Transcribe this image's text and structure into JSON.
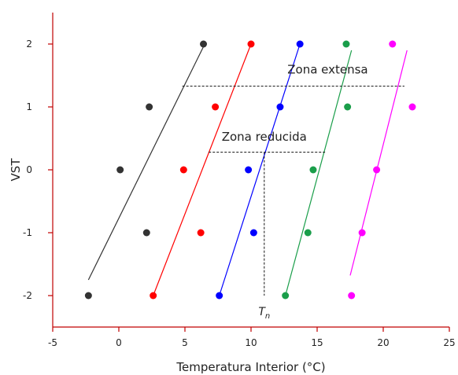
{
  "chart_data": {
    "type": "scatter",
    "xlabel": "Temperatura Interior (°C)",
    "ylabel": "VST",
    "xlim": [
      -5,
      25
    ],
    "ylim": [
      -2.5,
      2.5
    ],
    "xticks": [
      -5,
      0,
      5,
      10,
      15,
      20,
      25
    ],
    "yticks": [
      -2,
      -1,
      0,
      1,
      2
    ],
    "grid": false,
    "series": [
      {
        "color": "#333333",
        "x": [
          -2.3,
          2.1,
          0.1,
          2.3,
          6.4
        ],
        "y": [
          -2,
          -1,
          0,
          1,
          2
        ],
        "fit": [
          [
            -2.3,
            -1.75
          ],
          [
            6.5,
            2.0
          ]
        ]
      },
      {
        "color": "#ff0000",
        "x": [
          2.6,
          6.2,
          4.9,
          7.3,
          10.0
        ],
        "y": [
          -2,
          -1,
          0,
          1,
          2
        ],
        "fit": [
          [
            2.6,
            -2.0
          ],
          [
            10.0,
            2.0
          ]
        ]
      },
      {
        "color": "#0000ff",
        "x": [
          7.6,
          10.2,
          9.8,
          12.2,
          13.7
        ],
        "y": [
          -2,
          -1,
          0,
          1,
          2
        ],
        "fit": [
          [
            7.6,
            -2.0
          ],
          [
            13.7,
            2.0
          ]
        ]
      },
      {
        "color": "#1a9e4a",
        "x": [
          12.6,
          14.3,
          14.7,
          17.3,
          17.2
        ],
        "y": [
          -2,
          -1,
          0,
          1,
          2
        ],
        "fit": [
          [
            12.6,
            -2.0
          ],
          [
            17.6,
            1.9
          ]
        ]
      },
      {
        "color": "#ff00ff",
        "x": [
          17.6,
          18.4,
          19.5,
          22.2,
          20.7
        ],
        "y": [
          -2,
          -1,
          0,
          1,
          2
        ],
        "fit": [
          [
            17.5,
            -1.68
          ],
          [
            21.8,
            1.9
          ]
        ]
      }
    ],
    "annotations": [
      {
        "text": "Zona extensa",
        "x_from": 4.8,
        "x_to": 21.6,
        "y": 1.33,
        "label_x": 15.8,
        "label_y": 1.53
      },
      {
        "text": "Zona reducida",
        "x_from": 6.8,
        "x_to": 15.6,
        "y": 0.28,
        "label_x": 11.0,
        "label_y": 0.46
      }
    ],
    "tn_marker": {
      "label": "T",
      "subscript": "n",
      "x": 11.0,
      "y_from": 0.28,
      "y_to": -2.0
    }
  }
}
